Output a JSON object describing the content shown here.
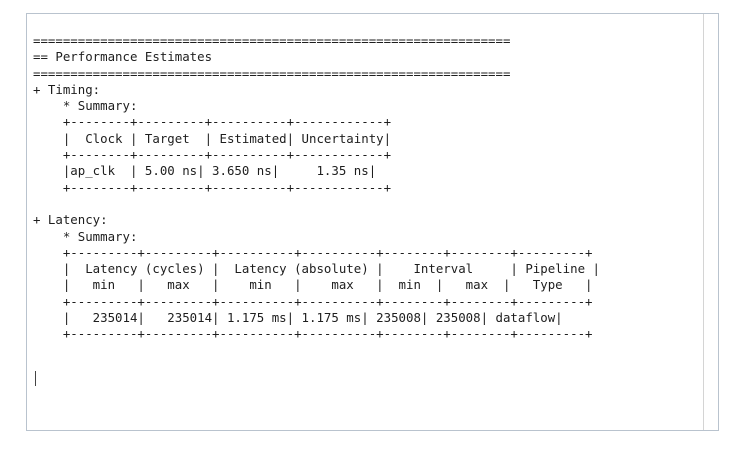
{
  "report": {
    "lines": [
      "================================================================",
      "== Performance Estimates",
      "================================================================",
      "+ Timing:",
      "    * Summary:",
      "    +--------+---------+----------+------------+",
      "    |  Clock | Target  | Estimated| Uncertainty|",
      "    +--------+---------+----------+------------+",
      "    |ap_clk  | 5.00 ns| 3.650 ns|     1.35 ns|",
      "    +--------+---------+----------+------------+",
      "",
      "+ Latency:",
      "    * Summary:",
      "    +---------+---------+----------+----------+--------+--------+---------+",
      "    |  Latency (cycles) |  Latency (absolute) |    Interval     | Pipeline |",
      "    |   min   |   max   |    min   |    max   |  min  |   max  |   Type   |",
      "    +---------+---------+----------+----------+--------+--------+---------+",
      "    |   235014|   235014| 1.175 ms| 1.175 ms| 235008| 235008| dataflow|",
      "    +---------+---------+----------+----------+--------+--------+---------+"
    ]
  }
}
